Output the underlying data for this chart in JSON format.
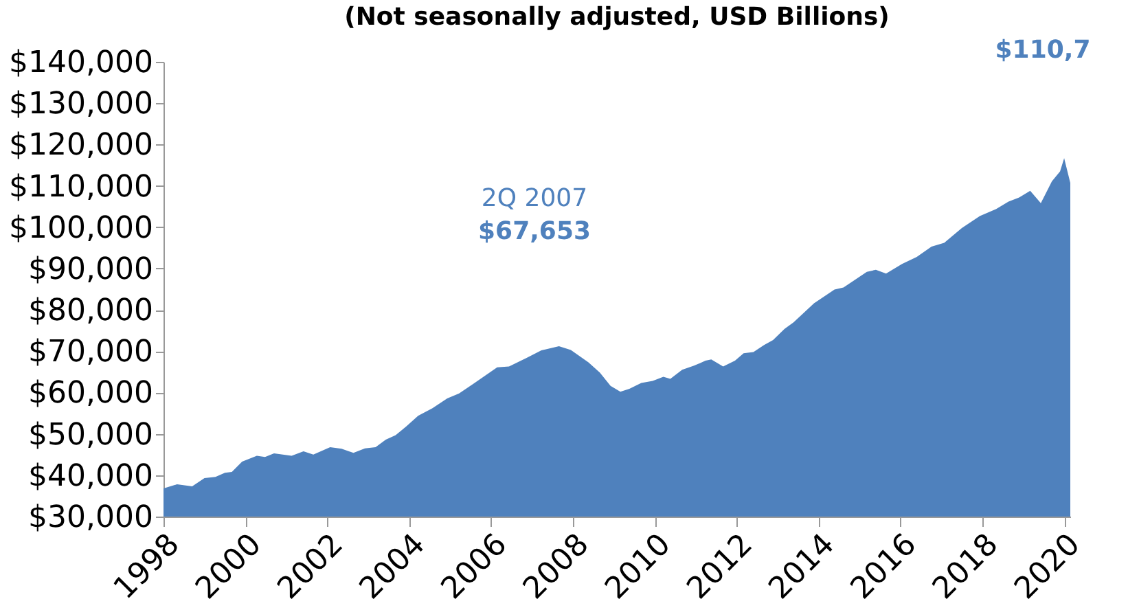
{
  "chart_data": {
    "type": "area",
    "subtitle": "(Not seasonally adjusted, USD Billions)",
    "annotations": [
      "2Q 2007",
      "$67,653",
      "$110,7"
    ],
    "x": [
      1998.0,
      1998.33,
      1998.7,
      1999.0,
      1999.27,
      1999.5,
      1999.67,
      1999.92,
      2000.28,
      2000.48,
      2000.7,
      2001.13,
      2001.42,
      2001.66,
      2002.07,
      2002.35,
      2002.64,
      2002.92,
      2003.18,
      2003.43,
      2003.67,
      2003.93,
      2004.22,
      2004.57,
      2004.93,
      2005.22,
      2005.58,
      2006.15,
      2006.44,
      2006.87,
      2007.23,
      2007.66,
      2007.95,
      2008.38,
      2008.66,
      2008.92,
      2009.16,
      2009.38,
      2009.67,
      2009.95,
      2010.21,
      2010.38,
      2010.67,
      2010.96,
      2011.24,
      2011.38,
      2011.67,
      2011.96,
      2012.17,
      2012.41,
      2012.67,
      2012.89,
      2013.17,
      2013.39,
      2013.89,
      2014.39,
      2014.61,
      2015.18,
      2015.4,
      2015.65,
      2016.04,
      2016.4,
      2016.76,
      2017.07,
      2017.5,
      2017.94,
      2018.34,
      2018.64,
      2018.9,
      2019.17,
      2019.43,
      2019.7,
      2019.9,
      2020.0,
      2020.15
    ],
    "series": [
      {
        "color": "#4f81bd",
        "values": [
          36800,
          37800,
          37300,
          39300,
          39600,
          40600,
          40800,
          43300,
          44700,
          44400,
          45300,
          44700,
          45800,
          45000,
          46800,
          46400,
          45400,
          46500,
          46800,
          48600,
          49700,
          51800,
          54400,
          56200,
          58600,
          59800,
          62200,
          66100,
          66300,
          68400,
          70200,
          71200,
          70300,
          67300,
          64800,
          61600,
          60200,
          60900,
          62300,
          62800,
          63800,
          63300,
          65500,
          66500,
          67700,
          68000,
          66300,
          67700,
          69500,
          69800,
          71500,
          72700,
          75400,
          77000,
          81600,
          84900,
          85400,
          89200,
          89700,
          88800,
          91100,
          92800,
          95300,
          96200,
          99800,
          102700,
          104400,
          106200,
          107200,
          108800,
          105800,
          111100,
          113500,
          116700,
          110700
        ]
      }
    ],
    "xlim": [
      1998,
      2020.15
    ],
    "xticks": [
      1998,
      2000,
      2002,
      2004,
      2006,
      2008,
      2010,
      2012,
      2014,
      2016,
      2018,
      2020
    ],
    "ylim": [
      30000,
      140000
    ],
    "yticks": [
      {
        "value": 30000,
        "label": "$30,000"
      },
      {
        "value": 40000,
        "label": "$40,000"
      },
      {
        "value": 50000,
        "label": "$50,000"
      },
      {
        "value": 60000,
        "label": "$60,000"
      },
      {
        "value": 70000,
        "label": "$70,000"
      },
      {
        "value": 80000,
        "label": "$80,000"
      },
      {
        "value": 90000,
        "label": "$90,000"
      },
      {
        "value": 100000,
        "label": "$100,000"
      },
      {
        "value": 110000,
        "label": "$110,000"
      },
      {
        "value": 120000,
        "label": "$120,000"
      },
      {
        "value": 130000,
        "label": "$130,000"
      },
      {
        "value": 140000,
        "label": "$140,000"
      }
    ],
    "grid": false
  }
}
